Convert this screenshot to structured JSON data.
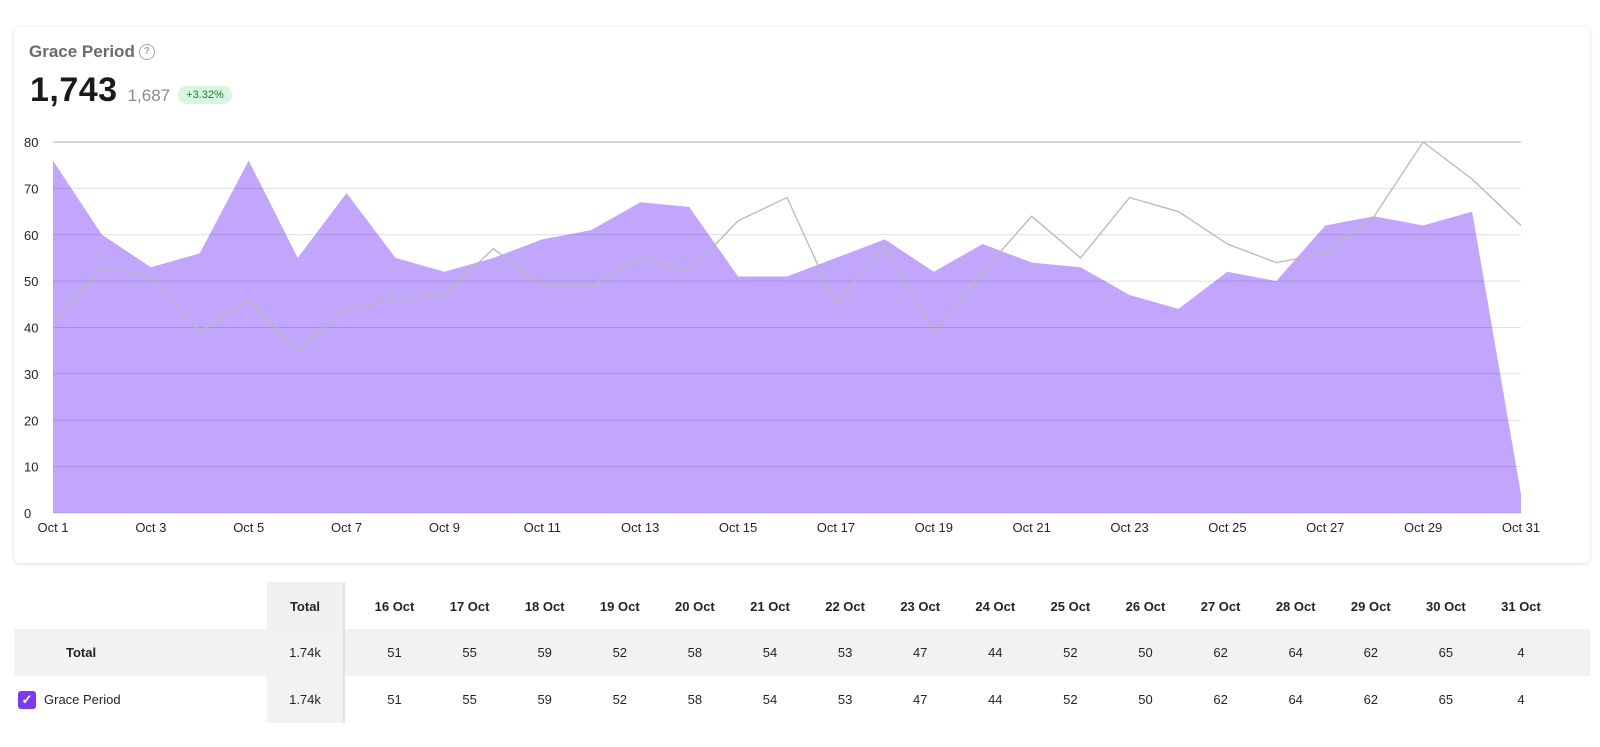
{
  "widget": {
    "title": "Grace Period",
    "help_icon": "question-circle-icon",
    "value": "1,743",
    "previous_value": "1,687",
    "delta": "+3.32%"
  },
  "colors": {
    "area_fill": "#c2a6fd",
    "compare_line": "#b8b8b8",
    "checkbox": "#7c3aed",
    "badge_bg": "#d7f5df",
    "badge_text": "#1a7f37"
  },
  "chart_data": {
    "type": "area",
    "ylim": [
      0,
      80
    ],
    "y_ticks": [
      0,
      10,
      20,
      30,
      40,
      50,
      60,
      70,
      80
    ],
    "x_tick_labels": [
      "Oct 1",
      "Oct 3",
      "Oct 5",
      "Oct 7",
      "Oct 9",
      "Oct 11",
      "Oct 13",
      "Oct 15",
      "Oct 17",
      "Oct 19",
      "Oct 21",
      "Oct 23",
      "Oct 25",
      "Oct 27",
      "Oct 29",
      "Oct 31"
    ],
    "x": [
      "Oct 1",
      "Oct 2",
      "Oct 3",
      "Oct 4",
      "Oct 5",
      "Oct 6",
      "Oct 7",
      "Oct 8",
      "Oct 9",
      "Oct 10",
      "Oct 11",
      "Oct 12",
      "Oct 13",
      "Oct 14",
      "Oct 15",
      "Oct 16",
      "Oct 17",
      "Oct 18",
      "Oct 19",
      "Oct 20",
      "Oct 21",
      "Oct 22",
      "Oct 23",
      "Oct 24",
      "Oct 25",
      "Oct 26",
      "Oct 27",
      "Oct 28",
      "Oct 29",
      "Oct 30",
      "Oct 31"
    ],
    "series": [
      {
        "values": [
          76,
          60,
          53,
          56,
          76,
          55,
          69,
          55,
          52,
          55,
          59,
          61,
          67,
          66,
          51,
          51,
          55,
          59,
          52,
          58,
          54,
          53,
          47,
          44,
          52,
          50,
          62,
          64,
          62,
          65,
          4
        ]
      },
      {
        "values": [
          41,
          53,
          51,
          39,
          46,
          35,
          44,
          46,
          47,
          57,
          49,
          49,
          55,
          52,
          63,
          68,
          45,
          58,
          39,
          52,
          64,
          55,
          68,
          65,
          58,
          54,
          56,
          64,
          80,
          72,
          62
        ]
      }
    ],
    "grid": true
  },
  "table": {
    "header_total": "Total",
    "columns": [
      "16 Oct",
      "17 Oct",
      "18 Oct",
      "19 Oct",
      "20 Oct",
      "21 Oct",
      "22 Oct",
      "23 Oct",
      "24 Oct",
      "25 Oct",
      "26 Oct",
      "27 Oct",
      "28 Oct",
      "29 Oct",
      "30 Oct",
      "31 Oct"
    ],
    "rows": [
      {
        "label": "Total",
        "total": "1.74k",
        "values": [
          "51",
          "55",
          "59",
          "52",
          "58",
          "54",
          "53",
          "47",
          "44",
          "52",
          "50",
          "62",
          "64",
          "62",
          "65",
          "4"
        ]
      },
      {
        "label": "Grace Period",
        "checked": true,
        "total": "1.74k",
        "values": [
          "51",
          "55",
          "59",
          "52",
          "58",
          "54",
          "53",
          "47",
          "44",
          "52",
          "50",
          "62",
          "64",
          "62",
          "65",
          "4"
        ]
      }
    ]
  }
}
